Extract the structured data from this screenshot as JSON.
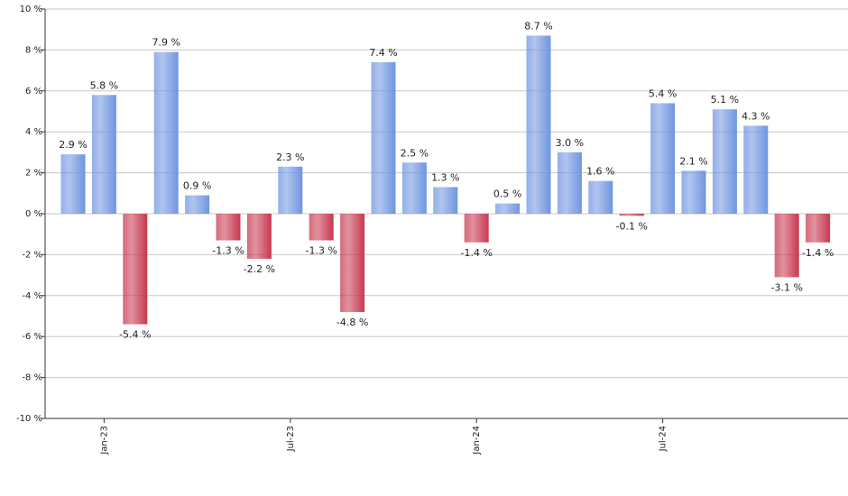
{
  "chart_data": {
    "type": "bar",
    "categories": [
      null,
      "Jan-23",
      null,
      null,
      null,
      null,
      null,
      "Jul-23",
      null,
      null,
      null,
      null,
      null,
      "Jan-24",
      null,
      null,
      null,
      null,
      null,
      "Jul-24",
      null,
      null,
      null,
      null,
      null
    ],
    "values": [
      2.9,
      5.8,
      -5.4,
      7.9,
      0.9,
      -1.3,
      -2.2,
      2.3,
      -1.3,
      -4.8,
      7.4,
      2.5,
      1.3,
      -1.4,
      0.5,
      8.7,
      3.0,
      1.6,
      -0.1,
      5.4,
      2.1,
      5.1,
      4.3,
      -3.1,
      -1.4
    ],
    "value_labels": [
      "2.9 %",
      "5.8 %",
      "-5.4 %",
      "7.9 %",
      "0.9 %",
      "-1.3 %",
      "-2.2 %",
      "2.3 %",
      "-1.3 %",
      "-4.8 %",
      "7.4 %",
      "2.5 %",
      "1.3 %",
      "-1.4 %",
      "0.5 %",
      "8.7 %",
      "3.0 %",
      "1.6 %",
      "-0.1 %",
      "5.4 %",
      "2.1 %",
      "5.1 %",
      "4.3 %",
      "-3.1 %",
      "-1.4 %"
    ],
    "positive_color": "#6f95e0",
    "negative_color": "#c8384f",
    "ylim": [
      -10,
      10
    ],
    "yticks": [
      {
        "value": -10,
        "label": "-10 %"
      },
      {
        "value": -8,
        "label": "-8 %"
      },
      {
        "value": -6,
        "label": "-6 %"
      },
      {
        "value": -4,
        "label": "-4 %"
      },
      {
        "value": -2,
        "label": "-2 %"
      },
      {
        "value": 0,
        "label": "0 %"
      },
      {
        "value": 2,
        "label": "2 %"
      },
      {
        "value": 4,
        "label": "4 %"
      },
      {
        "value": 6,
        "label": "6 %"
      },
      {
        "value": 8,
        "label": "8 %"
      },
      {
        "value": 10,
        "label": "10 %"
      }
    ],
    "grid": true
  }
}
